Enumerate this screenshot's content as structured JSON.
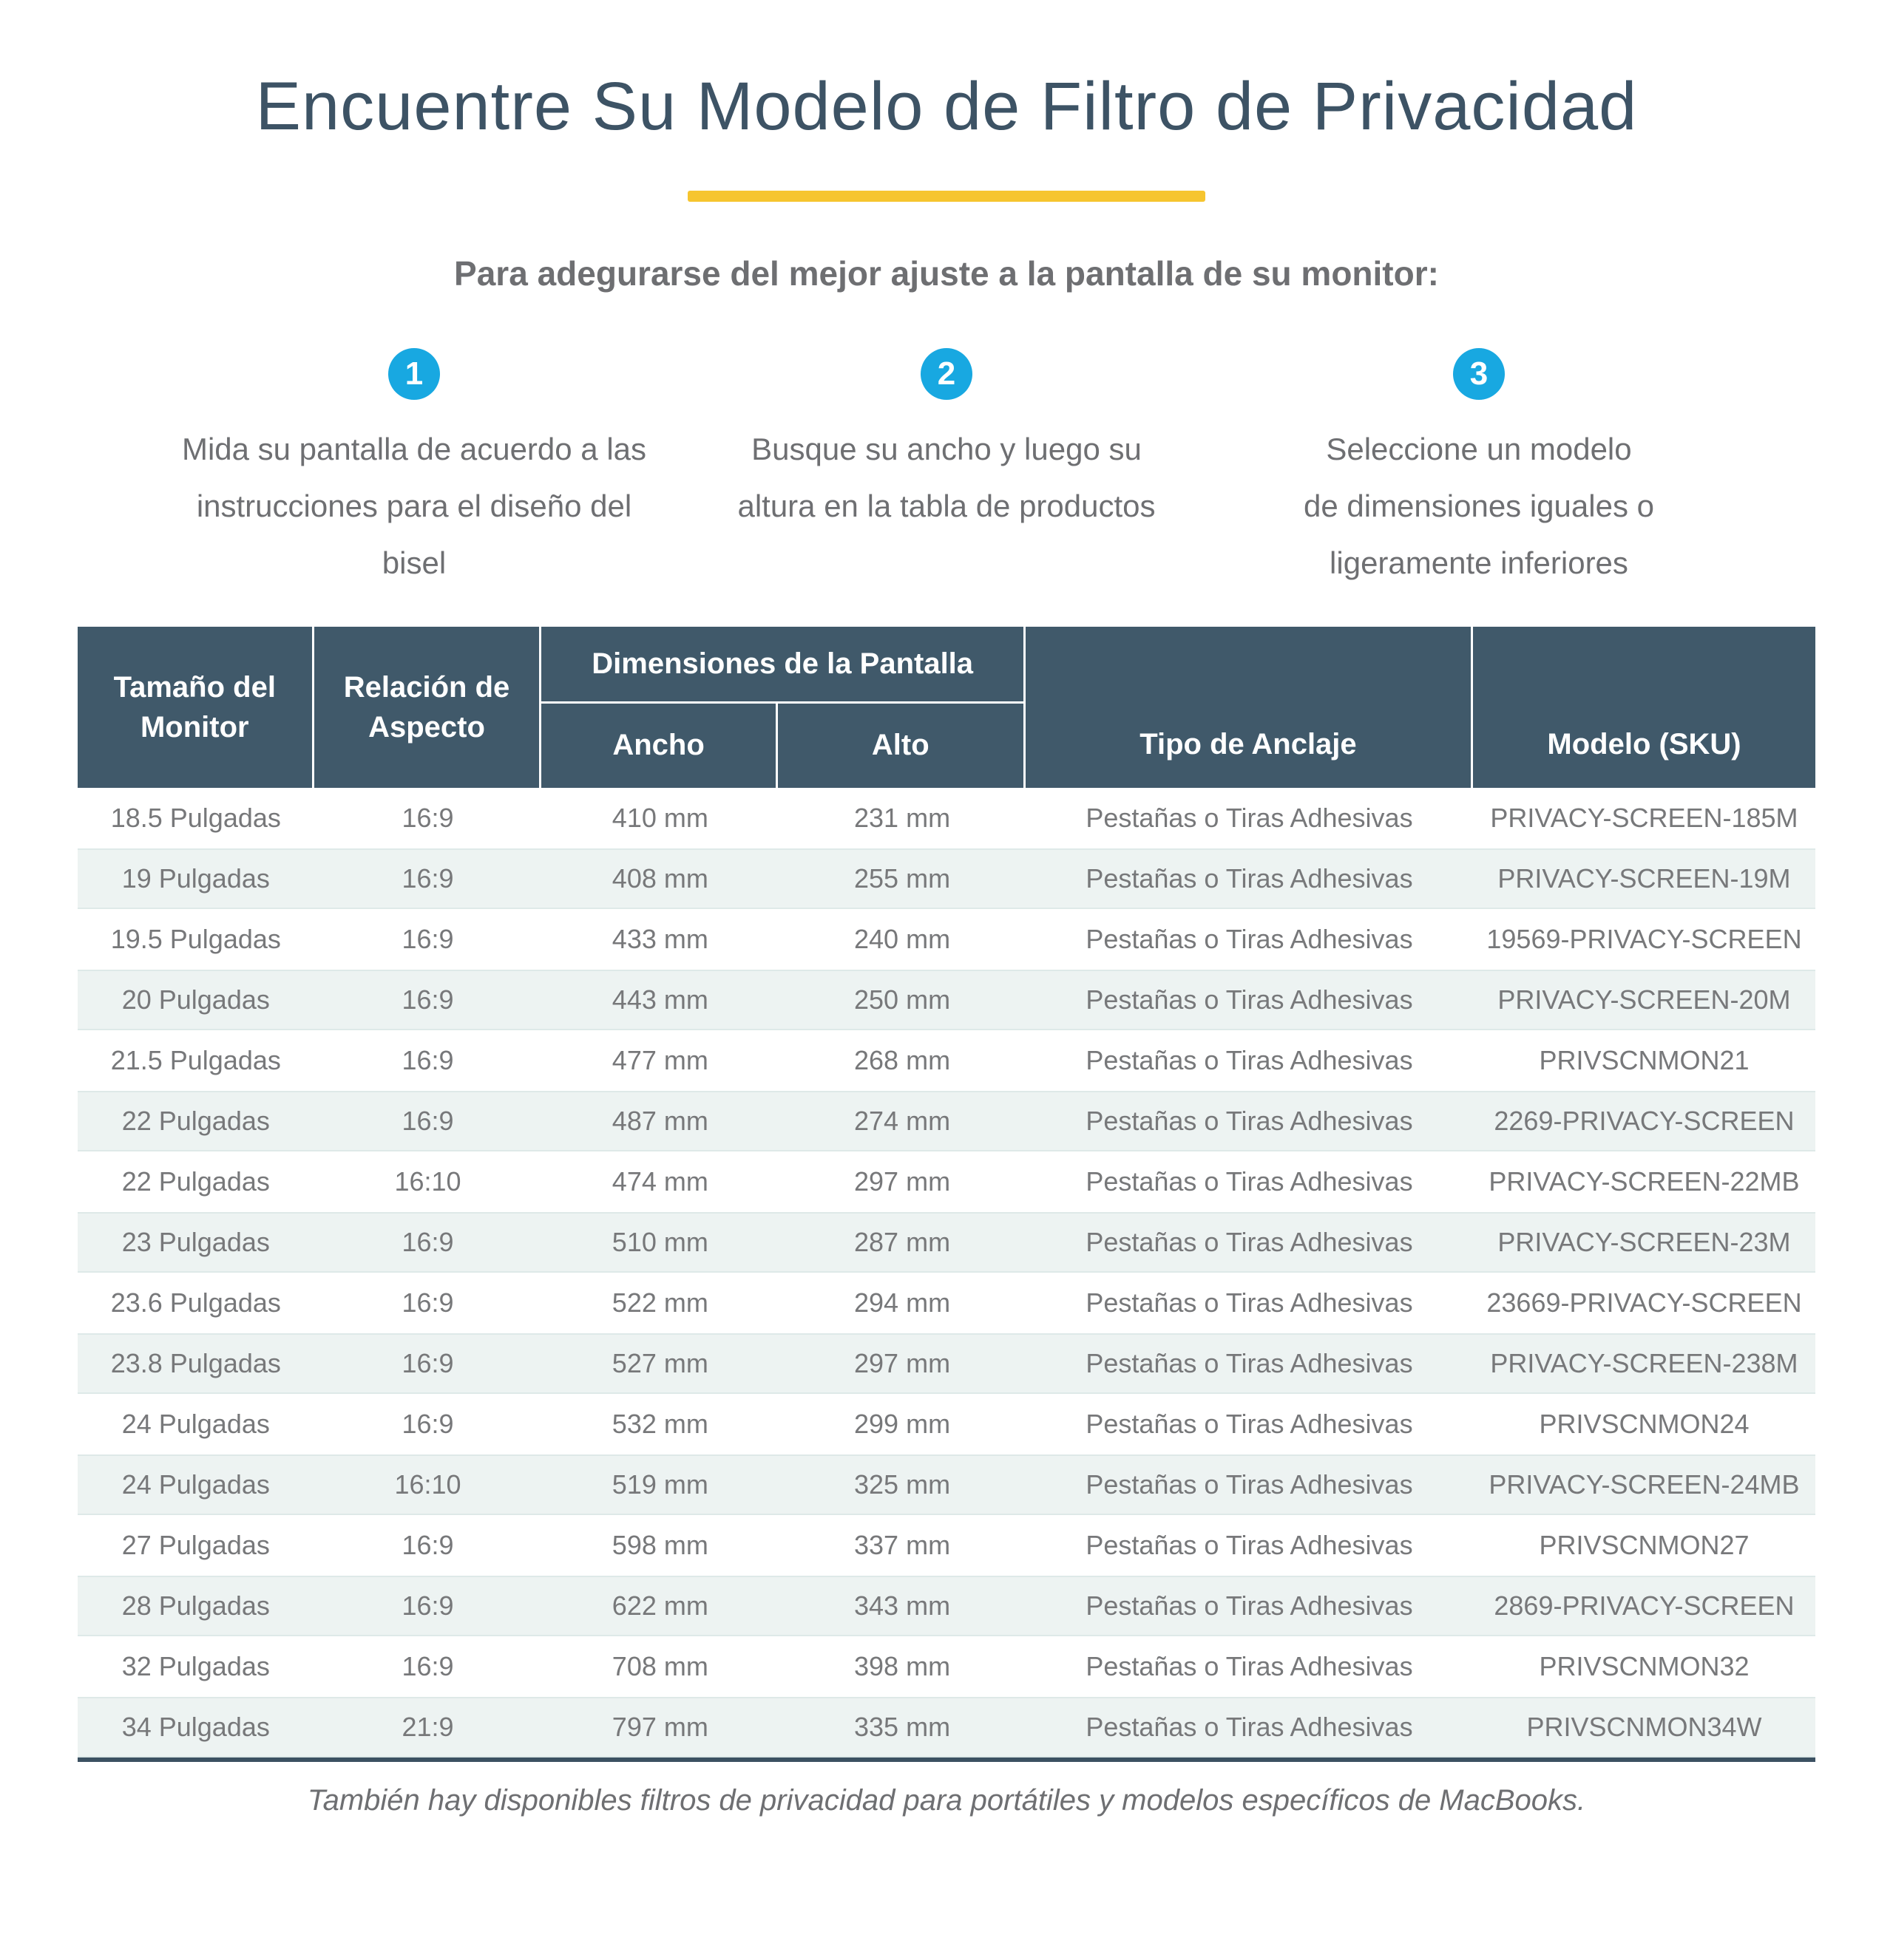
{
  "page": {
    "title": "Encuentre Su Modelo de Filtro de Privacidad",
    "subtitle": "Para adegurarse del mejor ajuste a la pantalla de su monitor:",
    "footer_note": "También hay disponibles filtros de privacidad para portátiles y modelos específicos de MacBooks.",
    "colors": {
      "accent_yellow": "#F6C52F",
      "step_blue": "#18A8E1",
      "header_bg": "#40596A",
      "title_color": "#3D5365",
      "alt_row": "#EDF3F2"
    }
  },
  "steps": [
    {
      "number": "1",
      "text": "Mida su pantalla de acuerdo a las instrucciones para el diseño del bisel",
      "lines": [
        "Mida su pantalla de acuerdo a las",
        "instrucciones para el diseño del",
        "bisel"
      ]
    },
    {
      "number": "2",
      "text": "Busque su ancho y luego su altura en la tabla de productos",
      "lines": [
        "Busque su ancho y luego su",
        "altura en la tabla de productos"
      ]
    },
    {
      "number": "3",
      "text": "Seleccione un modelo de dimensiones iguales o ligeramente inferiores",
      "lines": [
        "Seleccione un modelo",
        "de dimensiones iguales o",
        "ligeramente inferiores"
      ]
    }
  ],
  "table": {
    "headers": {
      "monitor_size": "Tamaño del Monitor",
      "aspect_ratio": "Relación de Aspecto",
      "dimensions_group": "Dimensiones de la Pantalla",
      "width": "Ancho",
      "height": "Alto",
      "anchor_type": "Tipo de Anclaje",
      "model_sku": "Modelo (SKU)"
    },
    "rows": [
      {
        "size": "18.5 Pulgadas",
        "ratio": "16:9",
        "width": "410 mm",
        "height": "231 mm",
        "anchor": "Pestañas o Tiras Adhesivas",
        "sku": "PRIVACY-SCREEN-185M"
      },
      {
        "size": "19 Pulgadas",
        "ratio": "16:9",
        "width": "408 mm",
        "height": "255 mm",
        "anchor": "Pestañas o Tiras Adhesivas",
        "sku": "PRIVACY-SCREEN-19M"
      },
      {
        "size": "19.5 Pulgadas",
        "ratio": "16:9",
        "width": "433 mm",
        "height": "240 mm",
        "anchor": "Pestañas o Tiras Adhesivas",
        "sku": "19569-PRIVACY-SCREEN"
      },
      {
        "size": "20 Pulgadas",
        "ratio": "16:9",
        "width": "443 mm",
        "height": "250 mm",
        "anchor": "Pestañas o Tiras Adhesivas",
        "sku": "PRIVACY-SCREEN-20M"
      },
      {
        "size": "21.5 Pulgadas",
        "ratio": "16:9",
        "width": "477 mm",
        "height": "268 mm",
        "anchor": "Pestañas o Tiras Adhesivas",
        "sku": "PRIVSCNMON21"
      },
      {
        "size": "22 Pulgadas",
        "ratio": "16:9",
        "width": "487 mm",
        "height": "274 mm",
        "anchor": "Pestañas o Tiras Adhesivas",
        "sku": "2269-PRIVACY-SCREEN"
      },
      {
        "size": "22 Pulgadas",
        "ratio": "16:10",
        "width": "474 mm",
        "height": "297 mm",
        "anchor": "Pestañas o Tiras Adhesivas",
        "sku": "PRIVACY-SCREEN-22MB"
      },
      {
        "size": "23 Pulgadas",
        "ratio": "16:9",
        "width": "510 mm",
        "height": "287 mm",
        "anchor": "Pestañas o Tiras Adhesivas",
        "sku": "PRIVACY-SCREEN-23M"
      },
      {
        "size": "23.6 Pulgadas",
        "ratio": "16:9",
        "width": "522 mm",
        "height": "294 mm",
        "anchor": "Pestañas o Tiras Adhesivas",
        "sku": "23669-PRIVACY-SCREEN"
      },
      {
        "size": "23.8 Pulgadas",
        "ratio": "16:9",
        "width": "527 mm",
        "height": "297 mm",
        "anchor": "Pestañas o Tiras Adhesivas",
        "sku": "PRIVACY-SCREEN-238M"
      },
      {
        "size": "24 Pulgadas",
        "ratio": "16:9",
        "width": "532 mm",
        "height": "299 mm",
        "anchor": "Pestañas o Tiras Adhesivas",
        "sku": "PRIVSCNMON24"
      },
      {
        "size": "24 Pulgadas",
        "ratio": "16:10",
        "width": "519 mm",
        "height": "325 mm",
        "anchor": "Pestañas o Tiras Adhesivas",
        "sku": "PRIVACY-SCREEN-24MB"
      },
      {
        "size": "27 Pulgadas",
        "ratio": "16:9",
        "width": "598 mm",
        "height": "337 mm",
        "anchor": "Pestañas o Tiras Adhesivas",
        "sku": "PRIVSCNMON27"
      },
      {
        "size": "28 Pulgadas",
        "ratio": "16:9",
        "width": "622 mm",
        "height": "343 mm",
        "anchor": "Pestañas o Tiras Adhesivas",
        "sku": "2869-PRIVACY-SCREEN"
      },
      {
        "size": "32 Pulgadas",
        "ratio": "16:9",
        "width": "708 mm",
        "height": "398 mm",
        "anchor": "Pestañas o Tiras Adhesivas",
        "sku": "PRIVSCNMON32"
      },
      {
        "size": "34 Pulgadas",
        "ratio": "21:9",
        "width": "797 mm",
        "height": "335 mm",
        "anchor": "Pestañas o Tiras Adhesivas",
        "sku": "PRIVSCNMON34W"
      }
    ]
  }
}
